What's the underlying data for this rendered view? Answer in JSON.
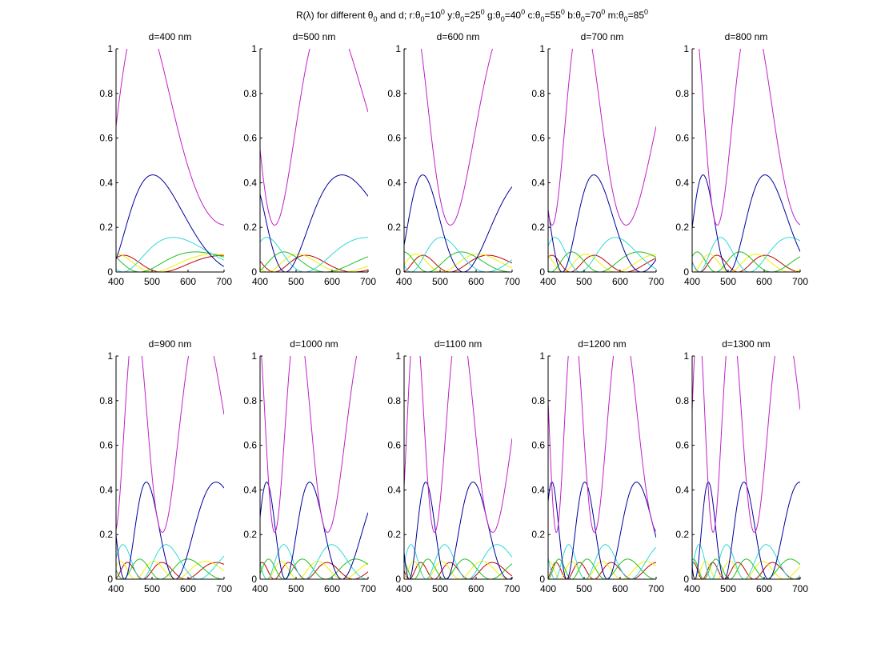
{
  "chart_data": {
    "type": "line",
    "title": "R(λ) for different θ0 and d;   r:θ0=10⁰   y:θ0=25⁰   g:θ0=40⁰   c:θ0=55⁰   b:θ0=70⁰   m:θ0=85⁰",
    "title_parts": {
      "prefix": "R(λ) for different θ",
      "mid": " and d;",
      "legend": [
        {
          "code": "r",
          "theta": 10
        },
        {
          "code": "y",
          "theta": 25
        },
        {
          "code": "g",
          "theta": 40
        },
        {
          "code": "c",
          "theta": 55
        },
        {
          "code": "b",
          "theta": 70
        },
        {
          "code": "m",
          "theta": 85
        }
      ]
    },
    "xlim": [
      400,
      700
    ],
    "ylim": [
      0,
      1
    ],
    "xticks": [
      400,
      500,
      600,
      700
    ],
    "yticks": [
      0,
      0.2,
      0.4,
      0.6,
      0.8,
      1
    ],
    "xtick_labels": [
      "400",
      "500",
      "600",
      "700"
    ],
    "ytick_labels": [
      "0",
      "0.2",
      "0.4",
      "0.6",
      "0.8",
      "1"
    ],
    "grid": false,
    "layout": "2x5 subplots",
    "subplots": [
      {
        "title": "d=400 nm",
        "d_nm": 400
      },
      {
        "title": "d=500 nm",
        "d_nm": 500
      },
      {
        "title": "d=600 nm",
        "d_nm": 600
      },
      {
        "title": "d=700 nm",
        "d_nm": 700
      },
      {
        "title": "d=800 nm",
        "d_nm": 800
      },
      {
        "title": "d=900 nm",
        "d_nm": 900
      },
      {
        "title": "d=1000 nm",
        "d_nm": 1000
      },
      {
        "title": "d=1100 nm",
        "d_nm": 1100
      },
      {
        "title": "d=1200 nm",
        "d_nm": 1200
      },
      {
        "title": "d=1300 nm",
        "d_nm": 1300
      }
    ],
    "series": [
      {
        "code": "r",
        "theta_deg": 10,
        "color": "#c00000",
        "peak_R": 0.075,
        "min_R": 0
      },
      {
        "code": "y",
        "theta_deg": 25,
        "color": "#f0f000",
        "peak_R": 0.08,
        "min_R": 0
      },
      {
        "code": "g",
        "theta_deg": 40,
        "color": "#20c020",
        "peak_R": 0.09,
        "min_R": 0
      },
      {
        "code": "c",
        "theta_deg": 55,
        "color": "#30d8d8",
        "peak_R": 0.155,
        "min_R": 0
      },
      {
        "code": "b",
        "theta_deg": 70,
        "color": "#00009c",
        "peak_R": 0.435,
        "min_R": 0
      },
      {
        "code": "m",
        "theta_deg": 85,
        "color": "#c020c8",
        "peak_R": 1.17,
        "min_R": 0.21
      }
    ]
  }
}
